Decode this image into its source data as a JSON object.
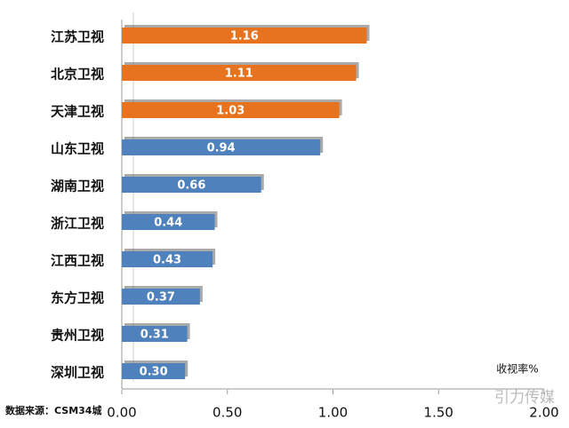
{
  "chart_data": {
    "type": "bar",
    "orientation": "horizontal",
    "categories": [
      "江苏卫视",
      "北京卫视",
      "天津卫视",
      "山东卫视",
      "湖南卫视",
      "浙江卫视",
      "江西卫视",
      "东方卫视",
      "贵州卫视",
      "深圳卫视"
    ],
    "values": [
      1.16,
      1.11,
      1.03,
      0.94,
      0.66,
      0.44,
      0.43,
      0.37,
      0.31,
      0.3
    ],
    "value_labels": [
      "1.16",
      "1.11",
      "1.03",
      "0.94",
      "0.66",
      "0.44",
      "0.43",
      "0.37",
      "0.31",
      "0.30"
    ],
    "colors": [
      "#e8731e",
      "#e8731e",
      "#e8731e",
      "#4f81bd",
      "#4f81bd",
      "#4f81bd",
      "#4f81bd",
      "#4f81bd",
      "#4f81bd",
      "#4f81bd"
    ],
    "xlim": [
      0,
      2
    ],
    "xticks": [
      {
        "value": 0,
        "label": "0.00"
      },
      {
        "value": 0.5,
        "label": "0.50"
      },
      {
        "value": 1,
        "label": "1.00"
      },
      {
        "value": 1.5,
        "label": "1.50"
      },
      {
        "value": 2,
        "label": "2.00"
      }
    ],
    "x_label": "收视率%",
    "source": "数据来源：CSM34城",
    "watermark": "引力传媒"
  }
}
